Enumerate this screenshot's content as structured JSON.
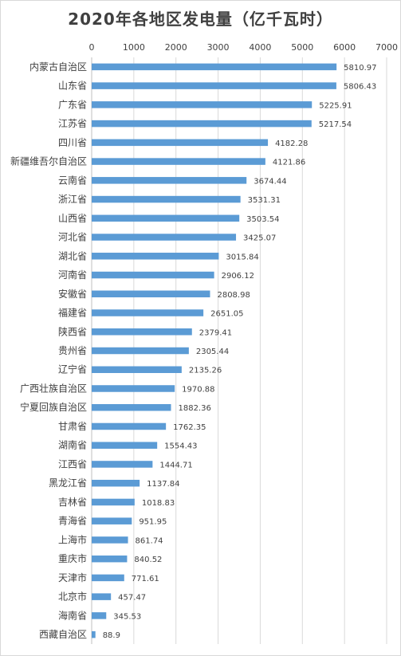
{
  "chart_data": {
    "type": "bar",
    "orientation": "horizontal",
    "title": "2020年各地区发电量（亿千瓦时）",
    "xlim": [
      0,
      7000
    ],
    "xticks": [
      "0",
      "1000",
      "2000",
      "3000",
      "4000",
      "5000",
      "6000",
      "7000"
    ],
    "grid": true,
    "bar_color": "#5b9bd5",
    "categories": [
      "内蒙古自治区",
      "山东省",
      "广东省",
      "江苏省",
      "四川省",
      "新疆维吾尔自治区",
      "云南省",
      "浙江省",
      "山西省",
      "河北省",
      "湖北省",
      "河南省",
      "安徽省",
      "福建省",
      "陕西省",
      "贵州省",
      "辽宁省",
      "广西壮族自治区",
      "宁夏回族自治区",
      "甘肃省",
      "湖南省",
      "江西省",
      "黑龙江省",
      "吉林省",
      "青海省",
      "上海市",
      "重庆市",
      "天津市",
      "北京市",
      "海南省",
      "西藏自治区"
    ],
    "values": [
      5810.97,
      5806.43,
      5225.91,
      5217.54,
      4182.28,
      4121.86,
      3674.44,
      3531.31,
      3503.54,
      3425.07,
      3015.84,
      2906.12,
      2808.98,
      2651.05,
      2379.41,
      2305.44,
      2135.26,
      1970.88,
      1882.36,
      1762.35,
      1554.43,
      1444.71,
      1137.84,
      1018.83,
      951.95,
      861.74,
      840.52,
      771.61,
      457.47,
      345.53,
      88.9
    ],
    "value_labels": [
      "5810.97",
      "5806.43",
      "5225.91",
      "5217.54",
      "4182.28",
      "4121.86",
      "3674.44",
      "3531.31",
      "3503.54",
      "3425.07",
      "3015.84",
      "2906.12",
      "2808.98",
      "2651.05",
      "2379.41",
      "2305.44",
      "2135.26",
      "1970.88",
      "1882.36",
      "1762.35",
      "1554.43",
      "1444.71",
      "1137.84",
      "1018.83",
      "951.95",
      "861.74",
      "840.52",
      "771.61",
      "457.47",
      "345.53",
      "88.9"
    ]
  }
}
